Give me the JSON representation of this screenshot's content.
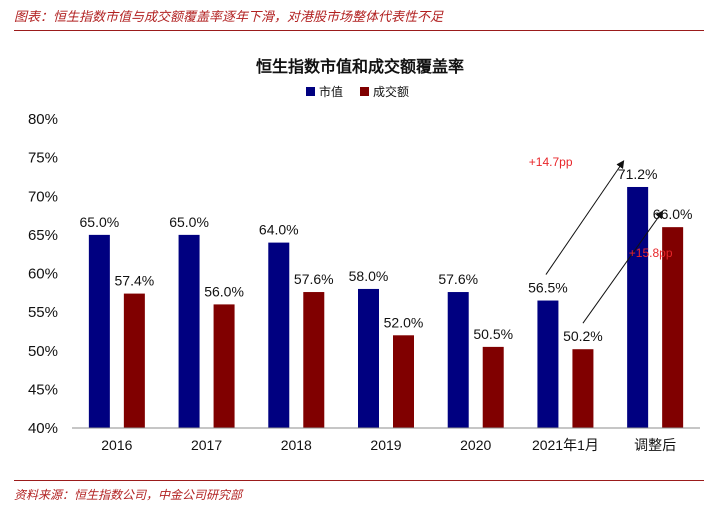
{
  "caption": "图表：恒生指数市值与成交额覆盖率逐年下滑，对港股市场整体代表性不足",
  "source": "资料来源：恒生指数公司，中金公司研究部",
  "colors": {
    "market_cap": "#000080",
    "turnover": "#800000",
    "accent": "#b22222",
    "annotation": "#e8262a"
  },
  "chart_data": {
    "type": "bar",
    "title": "恒生指数市值和成交额覆盖率",
    "categories": [
      "2016",
      "2017",
      "2018",
      "2019",
      "2020",
      "2021年1月",
      "调整后"
    ],
    "series": [
      {
        "name": "市值",
        "values": [
          65.0,
          65.0,
          64.0,
          58.0,
          57.6,
          56.5,
          71.2
        ],
        "labels": [
          "65.0%",
          "65.0%",
          "64.0%",
          "58.0%",
          "57.6%",
          "56.5%",
          "71.2%"
        ]
      },
      {
        "name": "成交额",
        "values": [
          57.4,
          56.0,
          57.6,
          52.0,
          50.5,
          50.2,
          66.0
        ],
        "labels": [
          "57.4%",
          "56.0%",
          "57.6%",
          "52.0%",
          "50.5%",
          "50.2%",
          "66.0%"
        ]
      }
    ],
    "ylim": [
      40,
      80
    ],
    "yticks": [
      40,
      45,
      50,
      55,
      60,
      65,
      70,
      75,
      80
    ],
    "ytick_labels": [
      "40%",
      "45%",
      "50%",
      "55%",
      "60%",
      "65%",
      "70%",
      "75%",
      "80%"
    ],
    "legend": "top-center",
    "grid": false,
    "annotations": [
      {
        "text": "+14.7pp",
        "series": 0,
        "from_index": 5,
        "to_index": 6
      },
      {
        "text": "+15.8pp",
        "series": 1,
        "from_index": 5,
        "to_index": 6
      }
    ]
  }
}
